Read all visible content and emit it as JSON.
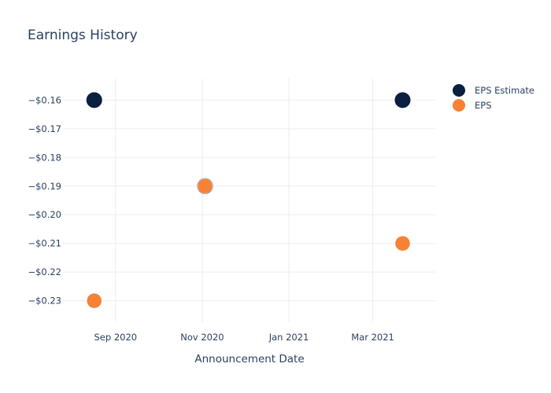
{
  "chart_data": {
    "type": "scatter",
    "title": "Earnings History",
    "xlabel": "Announcement Date",
    "ylabel": "",
    "x_ticks": [
      {
        "label": "Sep 2020",
        "date": "2020-09-01"
      },
      {
        "label": "Nov 2020",
        "date": "2020-11-01"
      },
      {
        "label": "Jan 2021",
        "date": "2021-01-01"
      },
      {
        "label": "Mar 2021",
        "date": "2021-03-01"
      }
    ],
    "y_ticks": [
      -0.16,
      -0.17,
      -0.18,
      -0.19,
      -0.2,
      -0.21,
      -0.22,
      -0.23
    ],
    "y_tick_labels": [
      "−$0.16",
      "−$0.17",
      "−$0.18",
      "−$0.19",
      "−$0.20",
      "−$0.21",
      "−$0.22",
      "−$0.23"
    ],
    "xlim": [
      "2020-07-26",
      "2021-04-14"
    ],
    "ylim": [
      -0.2375,
      -0.1525
    ],
    "grid": true,
    "legend_position": "top-right",
    "series": [
      {
        "name": "EPS Estimate",
        "color": "#0b1f3f",
        "points": [
          {
            "x": "2020-08-17",
            "y": -0.16
          },
          {
            "x": "2020-11-03",
            "y": -0.19
          },
          {
            "x": "2021-03-22",
            "y": -0.16
          }
        ]
      },
      {
        "name": "EPS",
        "color": "#f58235",
        "points": [
          {
            "x": "2020-08-17",
            "y": -0.23
          },
          {
            "x": "2020-11-03",
            "y": -0.19
          },
          {
            "x": "2021-03-22",
            "y": -0.21
          }
        ]
      }
    ]
  }
}
